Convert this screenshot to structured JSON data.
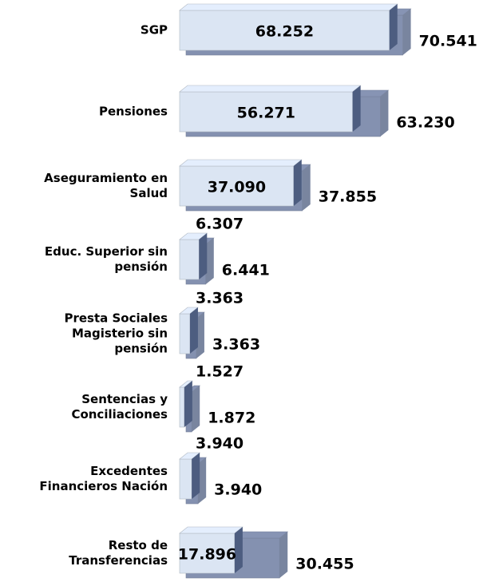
{
  "chart_data": {
    "type": "bar3d_horizontal",
    "categories": [
      "SGP",
      "Pensiones",
      "Aseguramiento en Salud",
      "Educ. Superior sin pensión",
      "Presta Sociales Magisterio sin pensión",
      "Sentencias y Conciliaciones",
      "Excedentes Financieros Nación",
      "Resto de Transferencias"
    ],
    "series": [
      {
        "color": "#dbe5f3",
        "values": [
          68.252,
          56.271,
          37.09,
          6.307,
          3.363,
          1.527,
          3.94,
          17.896
        ],
        "value_labels": [
          "68.252",
          "56.271",
          "37.090",
          "6.307",
          "3.363",
          "1.527",
          "3.940",
          "17.896"
        ]
      },
      {
        "color": "#5b6d96",
        "values": [
          70.541,
          63.23,
          37.855,
          6.441,
          3.363,
          1.872,
          3.94,
          30.455
        ],
        "value_labels": [
          "70.541",
          "63.230",
          "37.855",
          "6.441",
          "3.363",
          "1.872",
          "3.940",
          "30.455"
        ]
      }
    ]
  }
}
